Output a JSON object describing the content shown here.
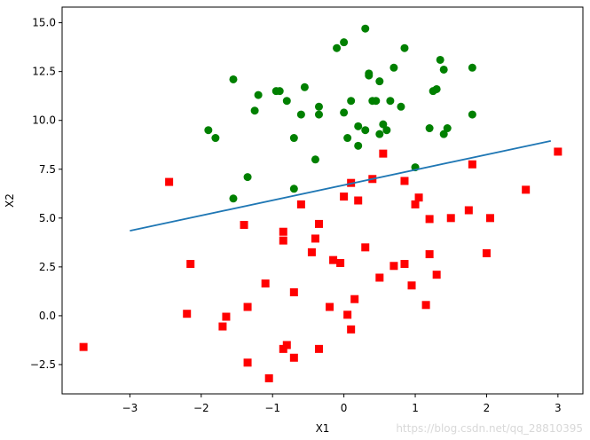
{
  "chart_data": {
    "type": "scatter",
    "title": "",
    "xlabel": "X1",
    "ylabel": "X2",
    "xlim": [
      -3.95,
      3.35
    ],
    "ylim": [
      -4.0,
      15.8
    ],
    "xticks": [
      -3,
      -2,
      -1,
      0,
      1,
      2,
      3
    ],
    "xtick_labels": [
      "−3",
      "−2",
      "−1",
      "0",
      "1",
      "2",
      "3"
    ],
    "yticks": [
      -2.5,
      0.0,
      2.5,
      5.0,
      7.5,
      10.0,
      12.5,
      15.0
    ],
    "ytick_labels": [
      "−2.5",
      "0.0",
      "2.5",
      "5.0",
      "7.5",
      "10.0",
      "12.5",
      "15.0"
    ],
    "grid": false,
    "series": [
      {
        "marker": "circle",
        "color": "#008000",
        "points": [
          [
            -1.9,
            9.5
          ],
          [
            -1.8,
            9.1
          ],
          [
            -1.55,
            12.1
          ],
          [
            -1.55,
            6.0
          ],
          [
            -1.35,
            7.1
          ],
          [
            -1.2,
            11.3
          ],
          [
            -1.25,
            10.5
          ],
          [
            -0.95,
            11.5
          ],
          [
            -0.9,
            11.5
          ],
          [
            -0.8,
            11.0
          ],
          [
            -0.7,
            6.5
          ],
          [
            -0.7,
            9.1
          ],
          [
            -0.6,
            10.3
          ],
          [
            -0.55,
            11.7
          ],
          [
            -0.4,
            8.0
          ],
          [
            -0.35,
            10.7
          ],
          [
            -0.35,
            10.3
          ],
          [
            -0.1,
            13.7
          ],
          [
            0.0,
            14.0
          ],
          [
            0.0,
            10.4
          ],
          [
            0.05,
            9.1
          ],
          [
            0.1,
            11.0
          ],
          [
            0.2,
            8.7
          ],
          [
            0.2,
            9.7
          ],
          [
            0.3,
            9.5
          ],
          [
            0.3,
            14.7
          ],
          [
            0.35,
            12.3
          ],
          [
            0.35,
            12.4
          ],
          [
            0.4,
            11.0
          ],
          [
            0.45,
            11.0
          ],
          [
            0.5,
            9.3
          ],
          [
            0.5,
            12.0
          ],
          [
            0.55,
            9.8
          ],
          [
            0.6,
            9.5
          ],
          [
            0.65,
            11.0
          ],
          [
            0.7,
            12.7
          ],
          [
            0.8,
            10.7
          ],
          [
            0.85,
            13.7
          ],
          [
            1.0,
            7.6
          ],
          [
            1.2,
            9.6
          ],
          [
            1.25,
            11.5
          ],
          [
            1.3,
            11.6
          ],
          [
            1.35,
            13.1
          ],
          [
            1.4,
            12.6
          ],
          [
            1.4,
            9.3
          ],
          [
            1.45,
            9.6
          ],
          [
            1.8,
            10.3
          ],
          [
            1.8,
            12.7
          ]
        ]
      },
      {
        "marker": "square",
        "color": "#ff0000",
        "points": [
          [
            -3.65,
            -1.6
          ],
          [
            -2.45,
            6.85
          ],
          [
            -2.2,
            0.1
          ],
          [
            -2.15,
            2.65
          ],
          [
            -1.7,
            -0.55
          ],
          [
            -1.65,
            -0.05
          ],
          [
            -1.4,
            4.65
          ],
          [
            -1.35,
            0.45
          ],
          [
            -1.35,
            -2.4
          ],
          [
            -1.1,
            1.65
          ],
          [
            -1.05,
            -3.2
          ],
          [
            -0.85,
            4.3
          ],
          [
            -0.85,
            3.85
          ],
          [
            -0.85,
            -1.7
          ],
          [
            -0.8,
            -1.5
          ],
          [
            -0.7,
            1.2
          ],
          [
            -0.7,
            -2.15
          ],
          [
            -0.6,
            5.7
          ],
          [
            -0.45,
            3.25
          ],
          [
            -0.4,
            3.95
          ],
          [
            -0.35,
            4.7
          ],
          [
            -0.35,
            -1.7
          ],
          [
            -0.2,
            0.45
          ],
          [
            -0.15,
            2.85
          ],
          [
            -0.05,
            2.7
          ],
          [
            0.0,
            6.1
          ],
          [
            0.05,
            0.05
          ],
          [
            0.1,
            6.8
          ],
          [
            0.1,
            -0.7
          ],
          [
            0.15,
            0.85
          ],
          [
            0.2,
            5.9
          ],
          [
            0.3,
            3.5
          ],
          [
            0.4,
            7.0
          ],
          [
            0.5,
            1.95
          ],
          [
            0.55,
            8.3
          ],
          [
            0.7,
            2.55
          ],
          [
            0.85,
            2.65
          ],
          [
            0.85,
            6.9
          ],
          [
            0.95,
            1.55
          ],
          [
            1.0,
            5.7
          ],
          [
            1.05,
            6.05
          ],
          [
            1.15,
            0.55
          ],
          [
            1.2,
            4.95
          ],
          [
            1.2,
            3.15
          ],
          [
            1.3,
            2.1
          ],
          [
            1.5,
            5.0
          ],
          [
            1.75,
            5.4
          ],
          [
            1.8,
            7.75
          ],
          [
            2.0,
            3.2
          ],
          [
            2.05,
            5.0
          ],
          [
            2.55,
            6.45
          ],
          [
            3.0,
            8.4
          ]
        ]
      },
      {
        "marker": "line",
        "color": "#1f77b4",
        "points": [
          [
            -3.0,
            4.35
          ],
          [
            2.9,
            8.95
          ]
        ]
      }
    ]
  },
  "watermark": "https://blog.csdn.net/qq_28810395"
}
